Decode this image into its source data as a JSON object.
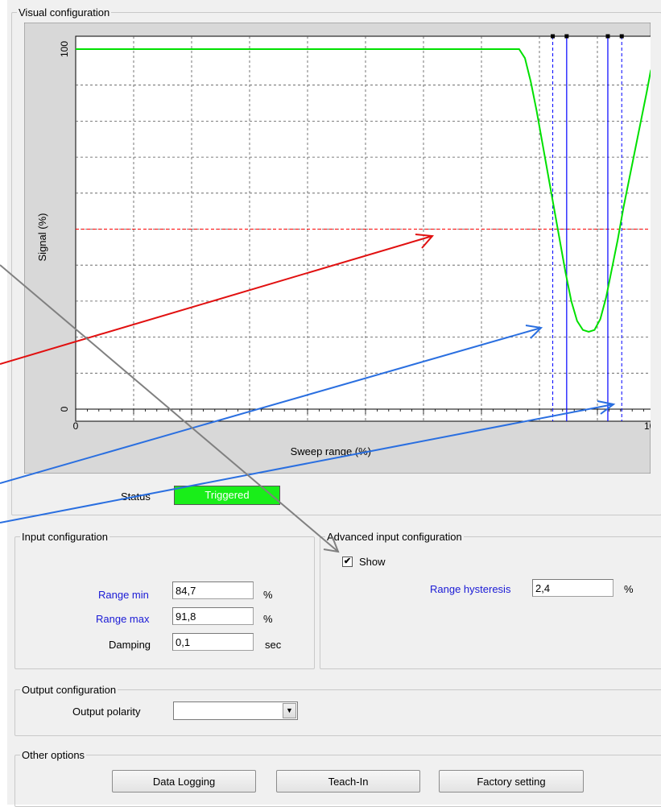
{
  "visual": {
    "legend": "Visual configuration",
    "status_label": "Status",
    "status_value": "Triggered",
    "status_color": "#19ee19"
  },
  "chart_data": {
    "type": "line",
    "xlabel": "Sweep range (%)",
    "ylabel": "Signal (%)",
    "xlim": [
      0,
      100
    ],
    "ylim": [
      0,
      100
    ],
    "x_ticks": [
      "0",
      "100"
    ],
    "y_ticks": [
      "0",
      "100"
    ],
    "grid": true,
    "series": [
      {
        "color": "#00e000",
        "x": [
          0,
          76.5,
          77.5,
          78.5,
          79.5,
          80.5,
          81.5,
          82.5,
          83.5,
          84.5,
          85.5,
          86.5,
          87.5,
          88.5,
          89.5,
          90.5,
          91.5,
          92.5,
          93.5,
          94.5,
          95.5,
          96.5,
          97.5,
          98.5,
          99.2,
          100
        ],
        "y": [
          100,
          100,
          97.5,
          91,
          83,
          74,
          65,
          56,
          47,
          38,
          30,
          24.5,
          22,
          21.5,
          22,
          25,
          31,
          39,
          47,
          56,
          64,
          72,
          80,
          88,
          94,
          97
        ]
      }
    ],
    "threshold_line": {
      "y": 50,
      "color": "#ff0000"
    },
    "range_lines_solid": [
      84.7,
      91.8
    ],
    "range_lines_dashed": [
      82.3,
      94.2
    ],
    "line_color": "#0000ff"
  },
  "input": {
    "legend": "Input configuration",
    "range_min_label": "Range min",
    "range_min_value": "84,7",
    "range_max_label": "Range max",
    "range_max_value": "91,8",
    "damping_label": "Damping",
    "damping_value": "0,1",
    "unit_percent": "%",
    "unit_sec": "sec"
  },
  "advanced": {
    "legend": "Advanced input configuration",
    "show_label": "Show",
    "show_checked": true,
    "hysteresis_label": "Range hysteresis",
    "hysteresis_value": "2,4",
    "unit_percent": "%"
  },
  "output": {
    "legend": "Output configuration",
    "polarity_label": "Output polarity",
    "polarity_value": ""
  },
  "other": {
    "legend": "Other options",
    "buttons": [
      "Data Logging",
      "Teach-In",
      "Factory setting"
    ]
  },
  "annotation_arrows": {
    "red": "#e11010",
    "blue": "#2a6fe0",
    "gray": "#808080"
  }
}
